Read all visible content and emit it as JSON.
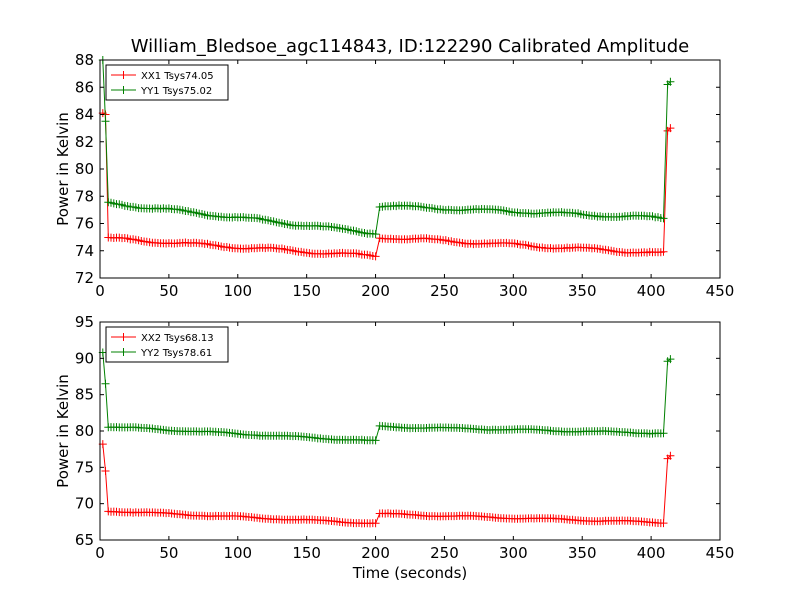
{
  "figure": {
    "title": "William_Bledsoe_agc114843, ID:122290 Calibrated Amplitude",
    "xlabel": "Time (seconds)"
  },
  "colors": {
    "red": "#ff0000",
    "green": "#008000",
    "axis": "#000000"
  },
  "chart_data": [
    {
      "type": "line",
      "ylabel": "Power in Kelvin",
      "xlim": [
        0,
        450
      ],
      "ylim": [
        72,
        88
      ],
      "xticks": [
        0,
        50,
        100,
        150,
        200,
        250,
        300,
        350,
        400,
        450
      ],
      "yticks": [
        72,
        74,
        76,
        78,
        80,
        82,
        84,
        86,
        88
      ],
      "legend_position": "top-left",
      "series": [
        {
          "name": "XX1 Tsys74.05",
          "color": "#ff0000",
          "marker": "+",
          "x": [
            2,
            4,
            6,
            201,
            203,
            410,
            412,
            414
          ],
          "y": [
            84.1,
            84.0,
            74.9,
            73.6,
            75.0,
            73.8,
            82.8,
            83.0
          ],
          "segments": [
            {
              "x_start": 6,
              "y_start": 74.9,
              "x_end": 200,
              "y_end": 73.6
            },
            {
              "x_start": 203,
              "y_start": 75.0,
              "x_end": 409,
              "y_end": 73.8
            }
          ]
        },
        {
          "name": "YY1 Tsys75.02",
          "color": "#008000",
          "marker": "+",
          "x": [
            2,
            4,
            6,
            201,
            203,
            410,
            412,
            414
          ],
          "y": [
            88.0,
            83.5,
            77.5,
            75.3,
            77.3,
            76.4,
            86.2,
            86.4
          ],
          "segments": [
            {
              "x_start": 6,
              "y_start": 77.5,
              "x_end": 200,
              "y_end": 75.3
            },
            {
              "x_start": 203,
              "y_start": 77.3,
              "x_end": 409,
              "y_end": 76.4
            }
          ]
        }
      ]
    },
    {
      "type": "line",
      "ylabel": "Power in Kelvin",
      "xlabel": "Time (seconds)",
      "xlim": [
        0,
        450
      ],
      "ylim": [
        65,
        95
      ],
      "xticks": [
        0,
        50,
        100,
        150,
        200,
        250,
        300,
        350,
        400,
        450
      ],
      "yticks": [
        65,
        70,
        75,
        80,
        85,
        90,
        95
      ],
      "legend_position": "top-left",
      "series": [
        {
          "name": "XX2 Tsys68.13",
          "color": "#ff0000",
          "marker": "+",
          "x": [
            2,
            4,
            6,
            201,
            203,
            410,
            412,
            414
          ],
          "y": [
            78.2,
            74.5,
            69.0,
            67.3,
            68.6,
            67.4,
            76.2,
            76.6
          ],
          "segments": [
            {
              "x_start": 6,
              "y_start": 69.0,
              "x_end": 200,
              "y_end": 67.3
            },
            {
              "x_start": 203,
              "y_start": 68.6,
              "x_end": 409,
              "y_end": 67.4
            }
          ]
        },
        {
          "name": "YY2 Tsys78.61",
          "color": "#008000",
          "marker": "+",
          "x": [
            2,
            4,
            6,
            201,
            203,
            410,
            412,
            414
          ],
          "y": [
            90.8,
            86.5,
            80.6,
            78.6,
            80.6,
            79.7,
            89.6,
            89.9
          ],
          "segments": [
            {
              "x_start": 6,
              "y_start": 80.6,
              "x_end": 200,
              "y_end": 78.6
            },
            {
              "x_start": 203,
              "y_start": 80.6,
              "x_end": 409,
              "y_end": 79.7
            }
          ]
        }
      ]
    }
  ]
}
